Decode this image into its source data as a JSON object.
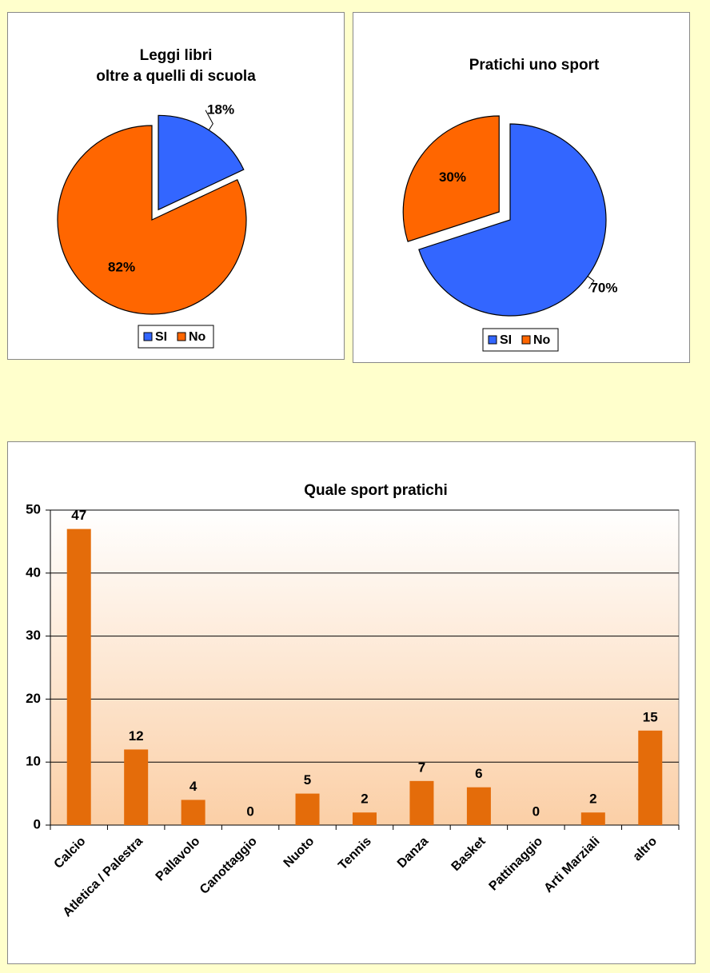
{
  "chart_data": [
    {
      "type": "pie",
      "title": [
        "Leggi libri",
        "oltre a quelli  di scuola"
      ],
      "categories": [
        "SI",
        "No"
      ],
      "values": [
        18,
        82
      ],
      "value_labels": [
        "18%",
        "82%"
      ],
      "colors": [
        "#3366ff",
        "#ff6600"
      ],
      "legend": "bottom"
    },
    {
      "type": "pie",
      "title": [
        "Pratichi  uno sport"
      ],
      "categories": [
        "SI",
        "No"
      ],
      "values": [
        70,
        30
      ],
      "value_labels": [
        "70%",
        "30%"
      ],
      "colors": [
        "#3366ff",
        "#ff6600"
      ],
      "legend": "bottom"
    },
    {
      "type": "bar",
      "title": "Quale sport pratichi",
      "categories": [
        "Calcio",
        "Atletica / Palestra",
        "Pallavolo",
        "Canottaggio",
        "Nuoto",
        "Tennis",
        "Danza",
        "Basket",
        "Pattinaggio",
        "Arti Marziali",
        "altro"
      ],
      "values": [
        47,
        12,
        4,
        0,
        5,
        2,
        7,
        6,
        0,
        2,
        15
      ],
      "color": "#e46c0a",
      "ylim": [
        0,
        50
      ],
      "yticks": [
        0,
        10,
        20,
        30,
        40,
        50
      ],
      "grid": true
    }
  ]
}
